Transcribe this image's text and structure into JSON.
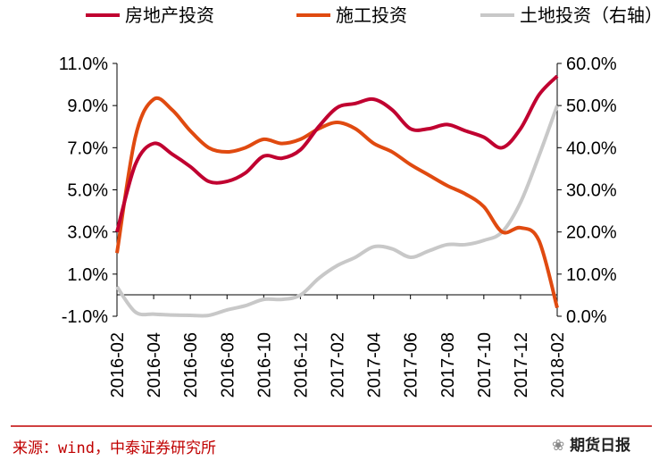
{
  "chart_data": {
    "type": "line",
    "x": [
      "2016-02",
      "2016-03",
      "2016-04",
      "2016-05",
      "2016-06",
      "2016-07",
      "2016-08",
      "2016-09",
      "2016-10",
      "2016-11",
      "2016-12",
      "2017-01",
      "2017-02",
      "2017-03",
      "2017-04",
      "2017-05",
      "2017-06",
      "2017-07",
      "2017-08",
      "2017-09",
      "2017-10",
      "2017-11",
      "2017-12",
      "2018-01",
      "2018-02"
    ],
    "x_ticks": [
      "2016-02",
      "2016-04",
      "2016-06",
      "2016-08",
      "2016-10",
      "2016-12",
      "2017-02",
      "2017-04",
      "2017-06",
      "2017-08",
      "2017-10",
      "2017-12",
      "2018-02"
    ],
    "y_left": {
      "ticks": [
        "11.0%",
        "9.0%",
        "7.0%",
        "5.0%",
        "3.0%",
        "1.0%",
        "-1.0%"
      ],
      "ylim": [
        -1,
        11
      ]
    },
    "y_right": {
      "ticks": [
        "60.0%",
        "50.0%",
        "40.0%",
        "30.0%",
        "20.0%",
        "10.0%",
        "0.0%"
      ],
      "ylim": [
        0,
        60
      ]
    },
    "series": [
      {
        "name": "房地产投资",
        "axis": "left",
        "color": "#c00030",
        "values": [
          3.0,
          6.2,
          7.2,
          6.7,
          6.1,
          5.4,
          5.4,
          5.8,
          6.6,
          6.5,
          6.9,
          8.0,
          8.9,
          9.1,
          9.3,
          8.8,
          7.9,
          7.9,
          8.1,
          7.8,
          7.5,
          7.0,
          7.9,
          9.5,
          10.4
        ]
      },
      {
        "name": "施工投资",
        "axis": "left",
        "color": "#e04a10",
        "values": [
          2.0,
          7.5,
          9.3,
          8.8,
          7.8,
          7.0,
          6.8,
          7.0,
          7.4,
          7.2,
          7.4,
          7.9,
          8.2,
          7.9,
          7.2,
          6.8,
          6.2,
          5.7,
          5.2,
          4.8,
          4.2,
          3.0,
          3.2,
          2.6,
          -0.6
        ]
      },
      {
        "name": "土地投资（右轴）",
        "axis": "right",
        "color": "#c8c8c8",
        "values": [
          7.0,
          1.0,
          0.5,
          0.3,
          0.2,
          0.2,
          1.5,
          2.5,
          4.0,
          4.0,
          5.0,
          9.0,
          12.0,
          14.0,
          16.5,
          16.0,
          14.0,
          15.5,
          17.0,
          17.0,
          18.0,
          20.0,
          27.0,
          38.0,
          50.0
        ]
      }
    ]
  },
  "footer": {
    "source": "来源：wind，中泰证券研究所",
    "watermark": "期货日报"
  },
  "colors": {
    "source": "#c00000",
    "axis": "#000000"
  }
}
